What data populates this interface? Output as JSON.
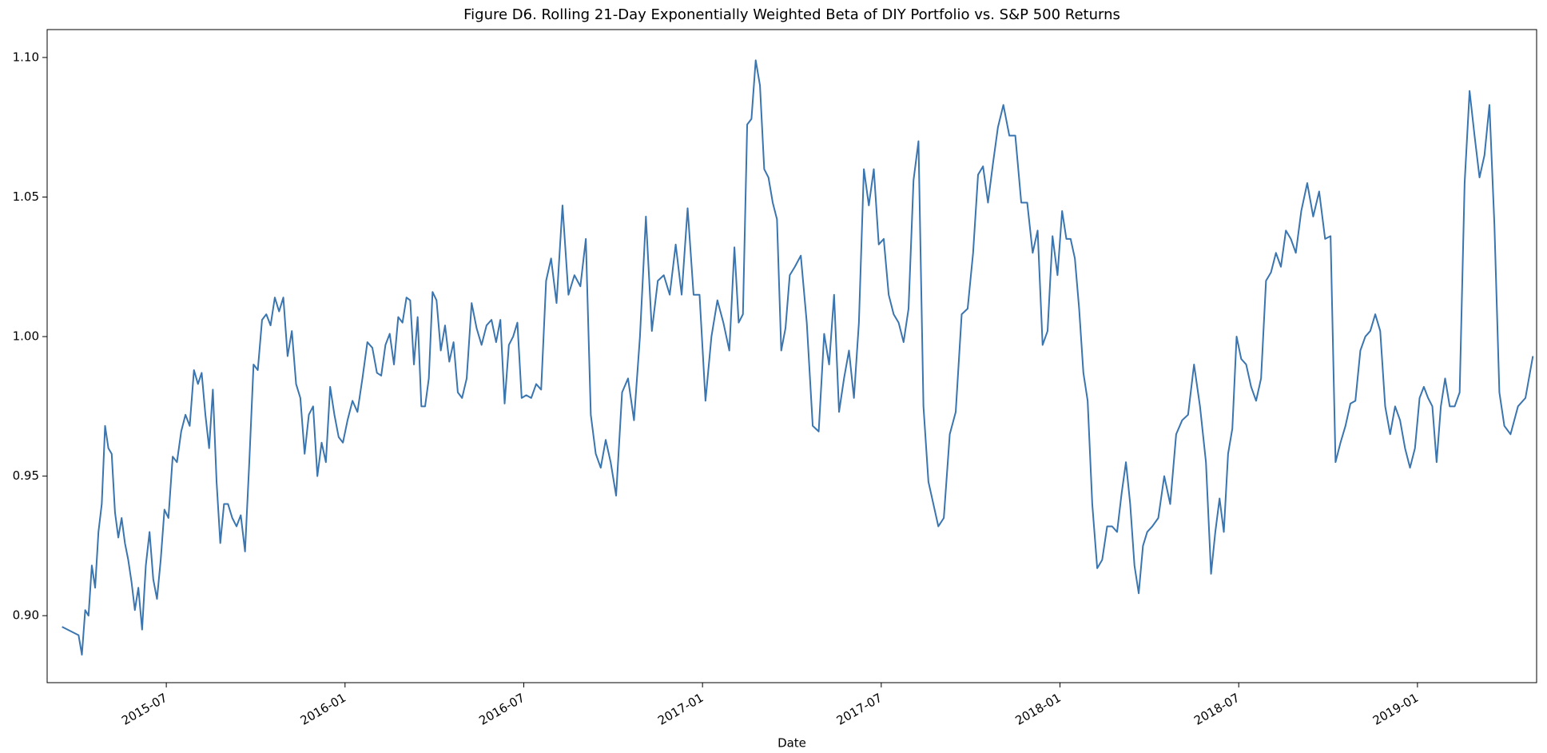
{
  "chart_data": {
    "type": "line",
    "title": "Figure D6. Rolling 21-Day Exponentially Weighted Beta of DIY Portfolio vs. S&P 500 Returns",
    "xlabel": "Date",
    "color": "#3a75b0",
    "xlim": [
      "2015-03",
      "2019-05"
    ],
    "xticks": [
      "2015-07",
      "2016-01",
      "2016-07",
      "2017-01",
      "2017-07",
      "2018-01",
      "2018-07",
      "2019-01"
    ],
    "ylim": [
      0.876,
      1.11
    ],
    "yticks": [
      {
        "value": 0.9,
        "label": "0.90"
      },
      0.95,
      {
        "value": 1.0,
        "label": "1.00"
      },
      1.05,
      {
        "value": 1.1,
        "label": "1.10"
      }
    ],
    "grid": false,
    "x": [
      "2015-03",
      "2015-04",
      "2015-04",
      "2015-04",
      "2015-04",
      "2015-04",
      "2015-04",
      "2015-04",
      "2015-04",
      "2015-04",
      "2015-05",
      "2015-05",
      "2015-05",
      "2015-05",
      "2015-05",
      "2015-05",
      "2015-05",
      "2015-05",
      "2015-05",
      "2015-06",
      "2015-06",
      "2015-06",
      "2015-06",
      "2015-06",
      "2015-06",
      "2015-06",
      "2015-06",
      "2015-07",
      "2015-07",
      "2015-07",
      "2015-07",
      "2015-07",
      "2015-07",
      "2015-07",
      "2015-08",
      "2015-08",
      "2015-08",
      "2015-08",
      "2015-08",
      "2015-08",
      "2015-08",
      "2015-08",
      "2015-09",
      "2015-09",
      "2015-09",
      "2015-09",
      "2015-09",
      "2015-09",
      "2015-09",
      "2015-10",
      "2015-10",
      "2015-10",
      "2015-10",
      "2015-10",
      "2015-10",
      "2015-10",
      "2015-11",
      "2015-11",
      "2015-11",
      "2015-11",
      "2015-11",
      "2015-11",
      "2015-11",
      "2015-12",
      "2015-12",
      "2015-12",
      "2015-12",
      "2015-12",
      "2015-12",
      "2015-12",
      "2016-01",
      "2016-01",
      "2016-01",
      "2016-01",
      "2016-01",
      "2016-01",
      "2016-02",
      "2016-02",
      "2016-02",
      "2016-02",
      "2016-02",
      "2016-02",
      "2016-02",
      "2016-03",
      "2016-03",
      "2016-03",
      "2016-03",
      "2016-03",
      "2016-03",
      "2016-03",
      "2016-03",
      "2016-04",
      "2016-04",
      "2016-04",
      "2016-04",
      "2016-04",
      "2016-04",
      "2016-04",
      "2016-05",
      "2016-05",
      "2016-05",
      "2016-05",
      "2016-05",
      "2016-05",
      "2016-06",
      "2016-06",
      "2016-06",
      "2016-06",
      "2016-06",
      "2016-06",
      "2016-06",
      "2016-07",
      "2016-07",
      "2016-07",
      "2016-07",
      "2016-07",
      "2016-07",
      "2016-08",
      "2016-08",
      "2016-08",
      "2016-08",
      "2016-08",
      "2016-09",
      "2016-09",
      "2016-09",
      "2016-09",
      "2016-09",
      "2016-09",
      "2016-10",
      "2016-10",
      "2016-10",
      "2016-10",
      "2016-10",
      "2016-11",
      "2016-11",
      "2016-11",
      "2016-11",
      "2016-11",
      "2016-12",
      "2016-12",
      "2016-12",
      "2016-12",
      "2016-12",
      "2017-01",
      "2017-01",
      "2017-01",
      "2017-01",
      "2017-01",
      "2017-02",
      "2017-02",
      "2017-02",
      "2017-02",
      "2017-02",
      "2017-02",
      "2017-02",
      "2017-03",
      "2017-03",
      "2017-03",
      "2017-03",
      "2017-03",
      "2017-03",
      "2017-03",
      "2017-04",
      "2017-04",
      "2017-04",
      "2017-04",
      "2017-04",
      "2017-05",
      "2017-05",
      "2017-05",
      "2017-05",
      "2017-05",
      "2017-05",
      "2017-06",
      "2017-06",
      "2017-06",
      "2017-06",
      "2017-06",
      "2017-06",
      "2017-07",
      "2017-07",
      "2017-07",
      "2017-07",
      "2017-07",
      "2017-07",
      "2017-08",
      "2017-08",
      "2017-08",
      "2017-08",
      "2017-08",
      "2017-08",
      "2017-09",
      "2017-09",
      "2017-09",
      "2017-09",
      "2017-09",
      "2017-10",
      "2017-10",
      "2017-10",
      "2017-10",
      "2017-10",
      "2017-10",
      "2017-11",
      "2017-11",
      "2017-11",
      "2017-11",
      "2017-11",
      "2017-12",
      "2017-12",
      "2017-12",
      "2017-12",
      "2017-12",
      "2017-12",
      "2018-01",
      "2018-01",
      "2018-01",
      "2018-01",
      "2018-01",
      "2018-01",
      "2018-01",
      "2018-02",
      "2018-02",
      "2018-02",
      "2018-02",
      "2018-02",
      "2018-02",
      "2018-03",
      "2018-03",
      "2018-03",
      "2018-03",
      "2018-03",
      "2018-03",
      "2018-03",
      "2018-04",
      "2018-04",
      "2018-04",
      "2018-04",
      "2018-04",
      "2018-05",
      "2018-05",
      "2018-05",
      "2018-05",
      "2018-05",
      "2018-06",
      "2018-06",
      "2018-06",
      "2018-06",
      "2018-06",
      "2018-06",
      "2018-06",
      "2018-07",
      "2018-07",
      "2018-07",
      "2018-07",
      "2018-07",
      "2018-07",
      "2018-08",
      "2018-08",
      "2018-08",
      "2018-08",
      "2018-08",
      "2018-08",
      "2018-09",
      "2018-09",
      "2018-09",
      "2018-09",
      "2018-09",
      "2018-10",
      "2018-10",
      "2018-10",
      "2018-10",
      "2018-10",
      "2018-10",
      "2018-11",
      "2018-11",
      "2018-11",
      "2018-11",
      "2018-11",
      "2018-11",
      "2018-12",
      "2018-12",
      "2018-12",
      "2018-12",
      "2018-12",
      "2018-12",
      "2019-01",
      "2019-01",
      "2019-01",
      "2019-01",
      "2019-01",
      "2019-01",
      "2019-01",
      "2019-02",
      "2019-02",
      "2019-02",
      "2019-02",
      "2019-02",
      "2019-02",
      "2019-03",
      "2019-03",
      "2019-03",
      "2019-03",
      "2019-03",
      "2019-03",
      "2019-04",
      "2019-04",
      "2019-04",
      "2019-04"
    ],
    "values": [
      0.896,
      0.893,
      0.886,
      0.902,
      0.9,
      0.918,
      0.91,
      0.93,
      0.94,
      0.968,
      0.96,
      0.958,
      0.937,
      0.928,
      0.935,
      0.926,
      0.92,
      0.912,
      0.902,
      0.91,
      0.895,
      0.918,
      0.93,
      0.913,
      0.906,
      0.92,
      0.938,
      0.935,
      0.957,
      0.955,
      0.966,
      0.972,
      0.968,
      0.988,
      0.983,
      0.987,
      0.972,
      0.96,
      0.981,
      0.948,
      0.926,
      0.94,
      0.94,
      0.935,
      0.932,
      0.936,
      0.923,
      0.955,
      0.99,
      0.988,
      1.006,
      1.008,
      1.004,
      1.014,
      1.009,
      1.014,
      0.993,
      1.002,
      0.983,
      0.978,
      0.958,
      0.972,
      0.975,
      0.95,
      0.962,
      0.955,
      0.982,
      0.972,
      0.964,
      0.962,
      0.97,
      0.977,
      0.973,
      0.985,
      0.998,
      0.996,
      0.987,
      0.986,
      0.997,
      1.001,
      0.99,
      1.007,
      1.005,
      1.014,
      1.013,
      0.99,
      1.007,
      0.975,
      0.975,
      0.985,
      1.016,
      1.013,
      0.995,
      1.004,
      0.991,
      0.998,
      0.98,
      0.978,
      0.985,
      1.012,
      1.003,
      0.997,
      1.004,
      1.006,
      0.998,
      1.006,
      0.976,
      0.997,
      1.0,
      1.005,
      0.978,
      0.979,
      0.978,
      0.983,
      0.981,
      1.02,
      1.028,
      1.012,
      1.047,
      1.015,
      1.022,
      1.018,
      1.035,
      0.972,
      0.958,
      0.953,
      0.963,
      0.955,
      0.943,
      0.98,
      0.985,
      0.97,
      1.0,
      1.043,
      1.002,
      1.02,
      1.022,
      1.015,
      1.033,
      1.015,
      1.046,
      1.015,
      1.015,
      0.977,
      1.0,
      1.013,
      1.005,
      0.995,
      1.032,
      1.005,
      1.008,
      1.076,
      1.078,
      1.099,
      1.09,
      1.06,
      1.057,
      1.048,
      1.042,
      0.995,
      1.003,
      1.022,
      1.025,
      1.029,
      1.005,
      0.968,
      0.966,
      1.001,
      0.99,
      1.015,
      0.973,
      0.985,
      0.995,
      0.978,
      1.005,
      1.06,
      1.047,
      1.06,
      1.033,
      1.035,
      1.015,
      1.008,
      1.005,
      0.998,
      1.01,
      1.056,
      1.07,
      0.975,
      0.948,
      0.94,
      0.932,
      0.935,
      0.965,
      0.973,
      1.008,
      1.01,
      1.03,
      1.058,
      1.061,
      1.048,
      1.062,
      1.075,
      1.083,
      1.072,
      1.072,
      1.048,
      1.048,
      1.03,
      1.038,
      0.997,
      1.002,
      1.036,
      1.022,
      1.045,
      1.035,
      1.035,
      1.028,
      1.01,
      0.987,
      0.977,
      0.94,
      0.917,
      0.92,
      0.932,
      0.932,
      0.93,
      0.944,
      0.955,
      0.94,
      0.918,
      0.908,
      0.925,
      0.93,
      0.932,
      0.935,
      0.95,
      0.94,
      0.965,
      0.97,
      0.972,
      0.99,
      0.975,
      0.955,
      0.915,
      0.93,
      0.942,
      0.93,
      0.958,
      0.967,
      1.0,
      0.992,
      0.99,
      0.982,
      0.977,
      0.985,
      1.02,
      1.023,
      1.03,
      1.025,
      1.038,
      1.035,
      1.03,
      1.045,
      1.055,
      1.043,
      1.052,
      1.035,
      1.036,
      0.955,
      0.962,
      0.968,
      0.976,
      0.977,
      0.995,
      1.0,
      1.002,
      1.008,
      1.002,
      0.975,
      0.965,
      0.975,
      0.97,
      0.96,
      0.953,
      0.96,
      0.978,
      0.982,
      0.978,
      0.975,
      0.955,
      0.975,
      0.985,
      0.975,
      0.975,
      0.98,
      1.055,
      1.088,
      1.072,
      1.057,
      1.065,
      1.083,
      1.04,
      0.98,
      0.968,
      0.965,
      0.975,
      0.978,
      0.993
    ]
  }
}
